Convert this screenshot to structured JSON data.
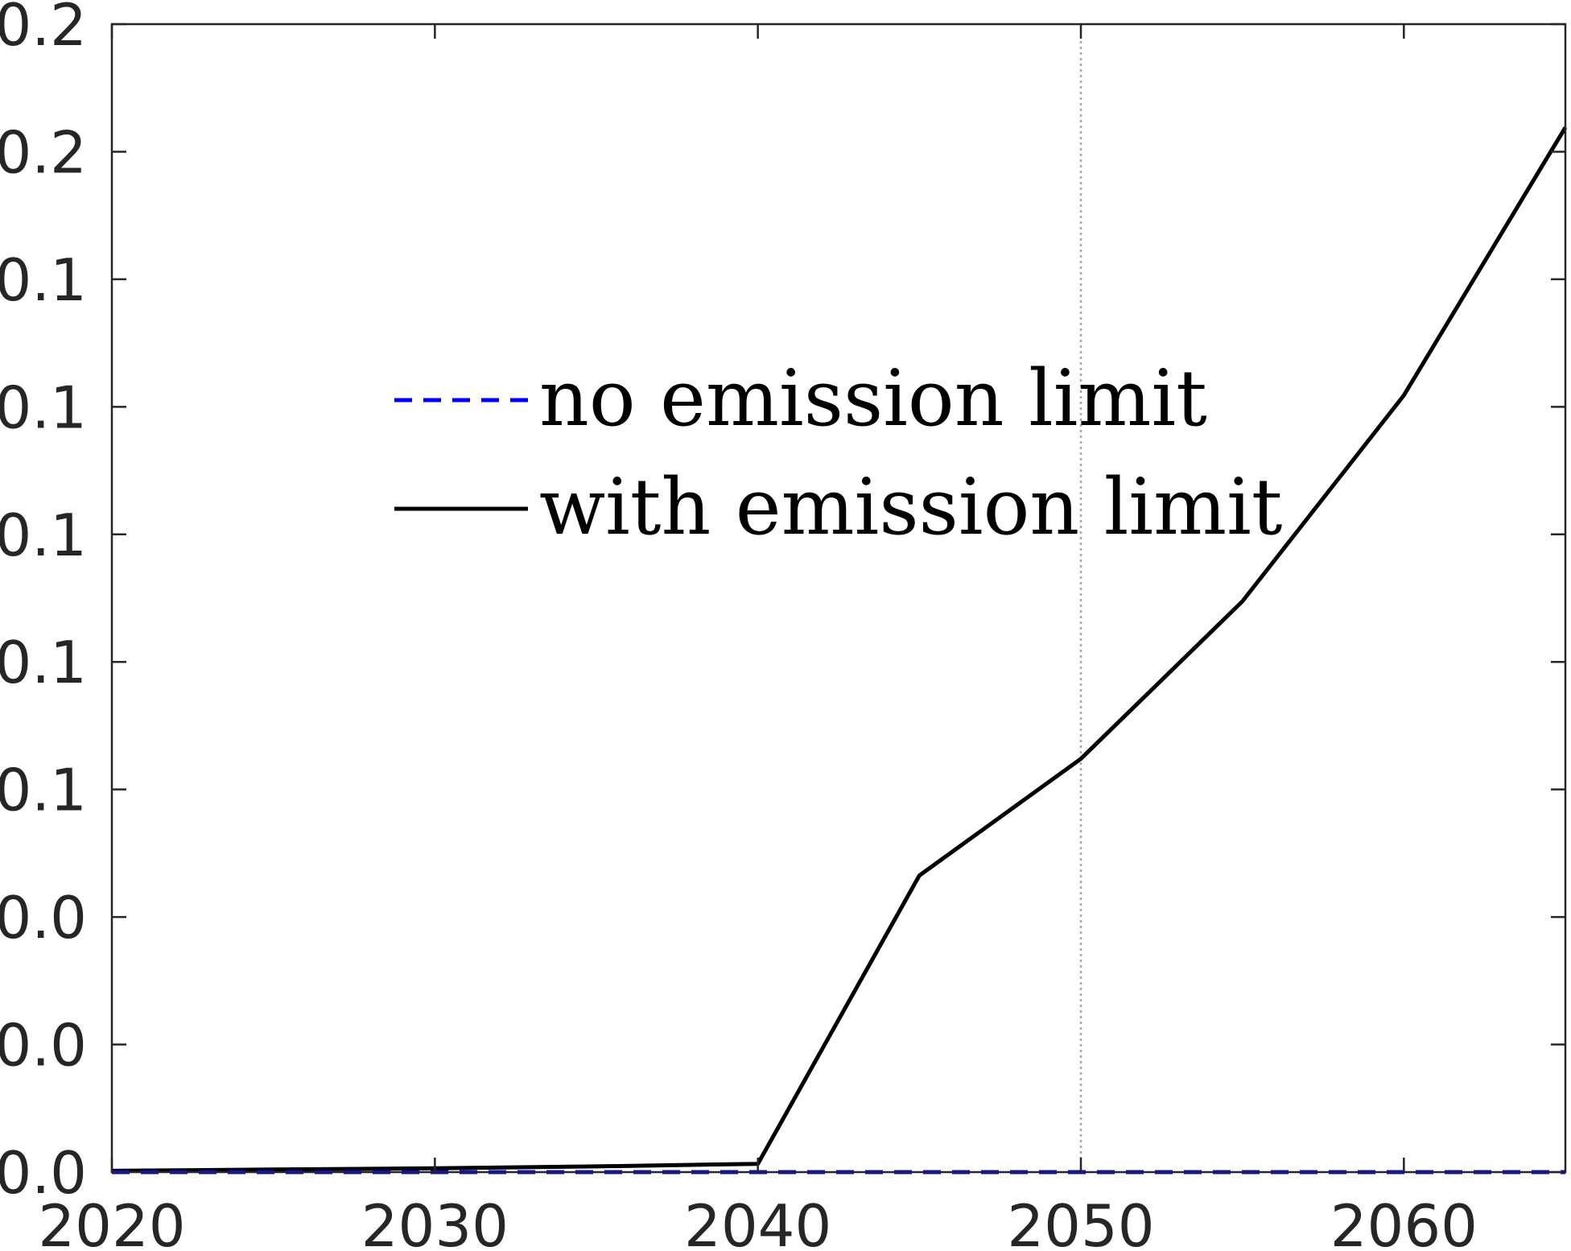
{
  "chart_data": {
    "type": "line",
    "title": "",
    "xlabel": "",
    "ylabel": "",
    "xlim": [
      2020,
      2065
    ],
    "ylim": [
      0,
      0.18
    ],
    "x_ticks": [
      2020,
      2030,
      2040,
      2050,
      2060
    ],
    "x_tick_labels": [
      "2020",
      "2030",
      "2040",
      "2050",
      "2060"
    ],
    "y_ticks": [
      0,
      0.02,
      0.04,
      0.06,
      0.08,
      0.1,
      0.12,
      0.14,
      0.16,
      0.18
    ],
    "y_tick_labels": [
      "0.0",
      "0.0",
      "0.0",
      "0.1",
      "0.1",
      "0.1",
      "0.1",
      "0.1",
      "0.2",
      "0.2"
    ],
    "grid": false,
    "vertical_reference_line": {
      "x": 2050,
      "style": "dotted",
      "color": "#a8a8a8"
    },
    "legend": {
      "placement": "upper-center",
      "entries": [
        "no emission limit",
        "with emission limit"
      ]
    },
    "series": [
      {
        "name": "no emission limit",
        "color": "#0000ff",
        "line_style": "dashed",
        "x": [
          2020,
          2025,
          2030,
          2035,
          2040,
          2045,
          2050,
          2055,
          2060,
          2065
        ],
        "y": [
          0,
          0,
          0,
          0,
          0,
          0,
          0,
          0,
          0,
          0
        ]
      },
      {
        "name": "with emission limit",
        "color": "#000000",
        "line_style": "solid",
        "x": [
          2020,
          2025,
          2030,
          2035,
          2040,
          2045,
          2050,
          2055,
          2060,
          2065
        ],
        "y": [
          0.0002,
          0.0004,
          0.0006,
          0.0009,
          0.0013,
          0.0465,
          0.0648,
          0.0895,
          0.1218,
          0.1638
        ]
      }
    ]
  }
}
